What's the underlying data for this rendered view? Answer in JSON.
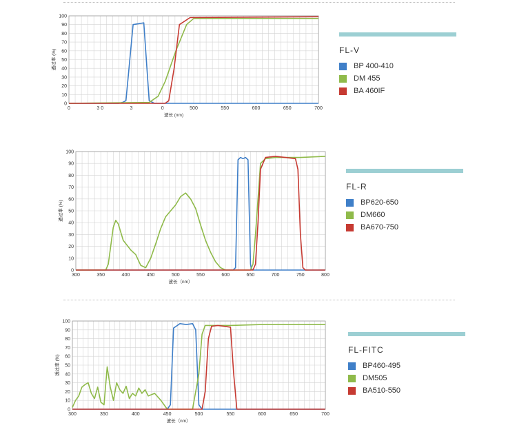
{
  "colors": {
    "blue": "#3f7fc8",
    "green": "#8fba4a",
    "red": "#c63a32",
    "grid": "#d4d4d4",
    "legend_bar": "#9ccfd3"
  },
  "chart_data": [
    {
      "type": "line",
      "xlabel": "波长 (nm)",
      "ylabel": "透过率 (%)",
      "xlim": [
        0,
        700
      ],
      "ylim": [
        0,
        100
      ],
      "xticks": [
        "0",
        "3 0",
        "3",
        "0",
        "500",
        "550",
        "600",
        "650",
        "700"
      ],
      "yticks": [
        0,
        10,
        20,
        30,
        40,
        50,
        60,
        70,
        80,
        90,
        100
      ],
      "legend": {
        "title": "FL-V",
        "entries": [
          "BP 400-410",
          "DM 455",
          "BA 460IF"
        ]
      },
      "series": [
        {
          "name": "BP 400-410",
          "color": "blue",
          "x": [
            0,
            140,
            150,
            160,
            180,
            210,
            225,
            240,
            700
          ],
          "y": [
            0,
            0,
            1,
            3,
            90,
            92,
            3,
            0,
            0
          ]
        },
        {
          "name": "DM 455",
          "color": "green",
          "x": [
            0,
            225,
            250,
            270,
            300,
            330,
            350,
            700
          ],
          "y": [
            0,
            1,
            8,
            25,
            60,
            90,
            97,
            97
          ]
        },
        {
          "name": "BA 460IF",
          "color": "red",
          "x": [
            0,
            270,
            280,
            295,
            310,
            340,
            700
          ],
          "y": [
            0,
            0,
            3,
            40,
            90,
            98,
            99
          ]
        }
      ]
    },
    {
      "type": "line",
      "xlabel": "波长（nm）",
      "ylabel": "透过率 (%)",
      "xlim": [
        300,
        800
      ],
      "ylim": [
        0,
        100
      ],
      "xticks": [
        "300",
        "350",
        "400",
        "450",
        "500",
        "550",
        "600",
        "650",
        "700",
        "750",
        "800"
      ],
      "yticks": [
        0,
        10,
        20,
        30,
        40,
        50,
        60,
        70,
        80,
        90,
        100
      ],
      "legend": {
        "title": "FL-R",
        "entries": [
          "BP620-650",
          "DM660",
          "BA670-750"
        ]
      },
      "series": [
        {
          "name": "BP620-650",
          "color": "blue",
          "x": [
            300,
            615,
            620,
            625,
            630,
            635,
            640,
            645,
            650,
            652,
            655,
            800
          ],
          "y": [
            0,
            0,
            2,
            93,
            95,
            94,
            95,
            93,
            5,
            1,
            0,
            0
          ]
        },
        {
          "name": "DM660",
          "color": "green",
          "x": [
            300,
            360,
            365,
            375,
            380,
            385,
            395,
            410,
            420,
            430,
            440,
            450,
            460,
            470,
            480,
            490,
            500,
            510,
            520,
            530,
            540,
            550,
            560,
            570,
            580,
            590,
            600,
            605,
            650,
            655,
            660,
            665,
            670,
            680,
            700,
            750,
            800
          ],
          "y": [
            0,
            0,
            5,
            36,
            42,
            39,
            25,
            17,
            13,
            4,
            2,
            10,
            22,
            35,
            45,
            50,
            55,
            62,
            65,
            60,
            52,
            38,
            25,
            15,
            7,
            2,
            0,
            0,
            0,
            5,
            30,
            60,
            90,
            94,
            95,
            95,
            96
          ]
        },
        {
          "name": "BA670-750",
          "color": "red",
          "x": [
            300,
            655,
            660,
            665,
            670,
            680,
            700,
            720,
            740,
            745,
            750,
            755,
            760,
            800
          ],
          "y": [
            0,
            0,
            5,
            40,
            85,
            95,
            96,
            95,
            94,
            85,
            30,
            2,
            0,
            0
          ]
        }
      ]
    },
    {
      "type": "line",
      "xlabel": "波长（nm）",
      "ylabel": "透过率 (%)",
      "xlim": [
        300,
        700
      ],
      "ylim": [
        0,
        100
      ],
      "xticks": [
        "300",
        "350",
        "400",
        "450",
        "500",
        "550",
        "600",
        "650",
        "700"
      ],
      "yticks": [
        0,
        10,
        20,
        30,
        40,
        50,
        60,
        70,
        80,
        90,
        100
      ],
      "legend": {
        "title": "FL-FITC",
        "entries": [
          "BP460-495",
          "DM505",
          "BA510-550"
        ]
      },
      "series": [
        {
          "name": "BP460-495",
          "color": "blue",
          "x": [
            300,
            450,
            455,
            460,
            470,
            480,
            490,
            495,
            500,
            505,
            700
          ],
          "y": [
            0,
            0,
            5,
            92,
            97,
            96,
            97,
            90,
            5,
            0,
            0
          ]
        },
        {
          "name": "DM505",
          "color": "green",
          "x": [
            300,
            305,
            310,
            315,
            320,
            325,
            330,
            335,
            340,
            345,
            350,
            355,
            360,
            365,
            370,
            375,
            380,
            385,
            390,
            395,
            400,
            405,
            410,
            415,
            420,
            430,
            440,
            450,
            480,
            490,
            500,
            505,
            510,
            520,
            550,
            600,
            650,
            700
          ],
          "y": [
            2,
            10,
            15,
            25,
            28,
            30,
            18,
            12,
            25,
            8,
            5,
            48,
            25,
            10,
            30,
            22,
            18,
            26,
            12,
            18,
            15,
            24,
            18,
            22,
            15,
            18,
            10,
            0,
            0,
            0,
            40,
            85,
            95,
            95,
            95,
            96,
            96,
            96
          ]
        },
        {
          "name": "BA510-550",
          "color": "red",
          "x": [
            300,
            505,
            510,
            515,
            520,
            530,
            540,
            550,
            555,
            560,
            700
          ],
          "y": [
            0,
            0,
            20,
            80,
            94,
            95,
            94,
            93,
            40,
            0,
            0
          ]
        }
      ]
    }
  ]
}
